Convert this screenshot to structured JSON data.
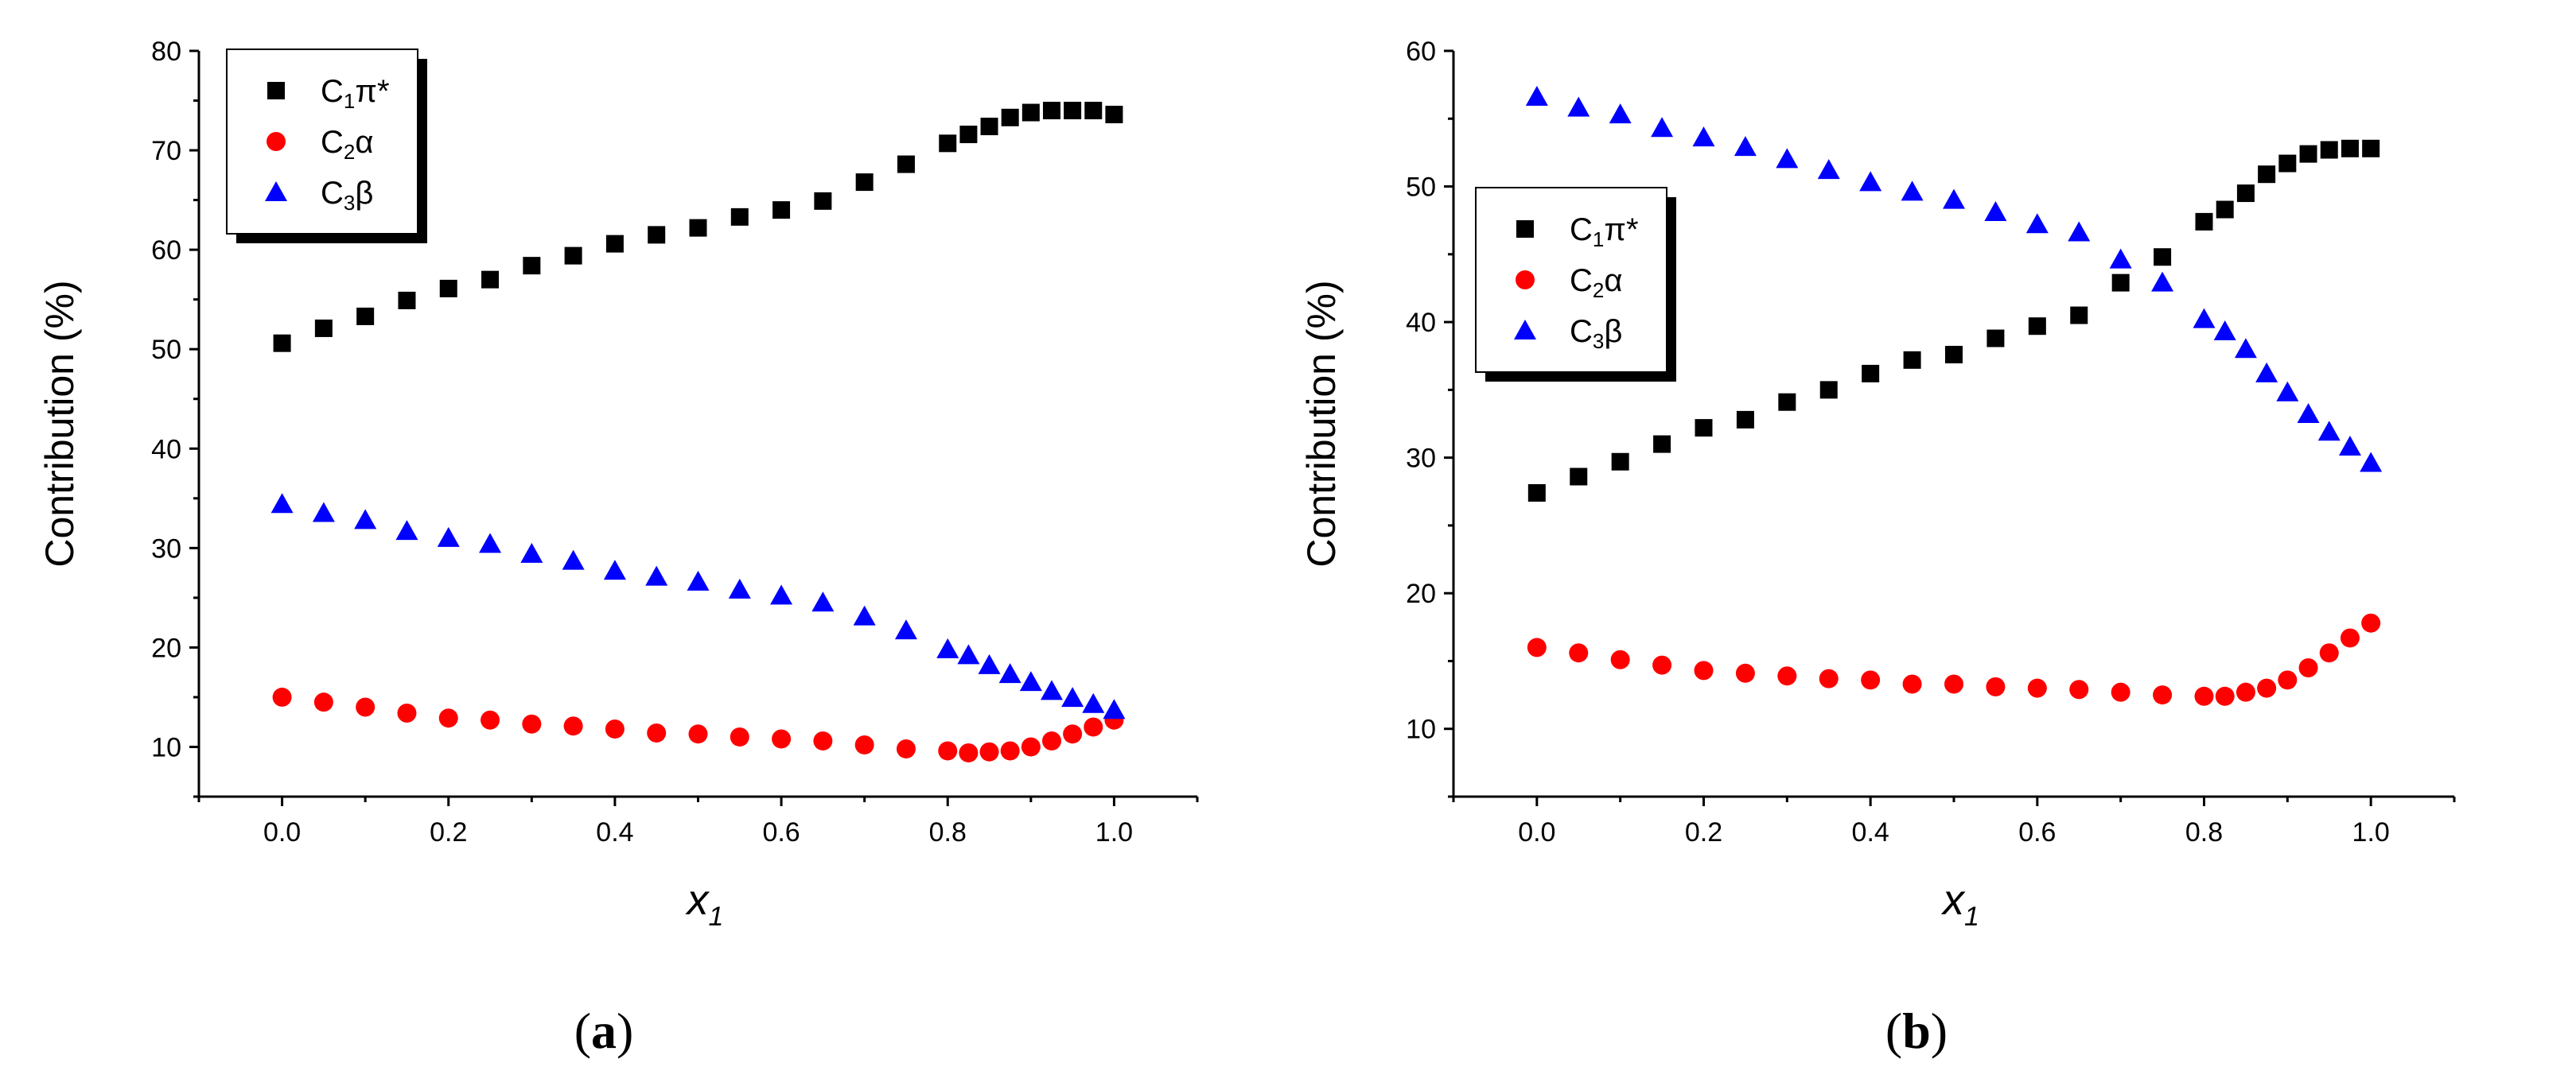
{
  "legend_labels": {
    "s1": {
      "base": "C",
      "sub": "1",
      "rest": "π*"
    },
    "s2": {
      "base": "C",
      "sub": "2",
      "rest": "α"
    },
    "s3": {
      "base": "C",
      "sub": "3",
      "rest": "β"
    }
  },
  "panel_labels": [
    {
      "open": "(",
      "letter": "a",
      "close": ")"
    },
    {
      "open": "(",
      "letter": "b",
      "close": ")"
    }
  ],
  "colors": {
    "s1": "#000000",
    "s2": "#ff0000",
    "s3": "#0000ff"
  },
  "chart_data": [
    {
      "type": "scatter",
      "xlabel": {
        "main": "x",
        "sub": "1"
      },
      "ylabel": "Contribution (%)",
      "xlim": [
        -0.1,
        1.1
      ],
      "ylim": [
        5,
        80
      ],
      "xticks": [
        "0.0",
        "0.2",
        "0.4",
        "0.6",
        "0.8",
        "1.0"
      ],
      "yticks": [
        "10",
        "20",
        "30",
        "40",
        "50",
        "60",
        "70",
        "80"
      ],
      "legend_position": "top-left",
      "series": [
        {
          "name": "C1π*",
          "marker": "square",
          "color": "#000000",
          "x": [
            0,
            0.05,
            0.1,
            0.15,
            0.2,
            0.25,
            0.3,
            0.35,
            0.4,
            0.45,
            0.5,
            0.55,
            0.6,
            0.65,
            0.7,
            0.75,
            0.8,
            0.825,
            0.85,
            0.875,
            0.9,
            0.925,
            0.95,
            0.975,
            1.0
          ],
          "y": [
            50.6,
            52.1,
            53.3,
            54.9,
            56.1,
            57.0,
            58.4,
            59.4,
            60.6,
            61.5,
            62.2,
            63.3,
            64.0,
            64.9,
            66.8,
            68.6,
            70.7,
            71.6,
            72.4,
            73.3,
            73.8,
            74.0,
            74.0,
            74.0,
            73.6
          ]
        },
        {
          "name": "C2α",
          "marker": "circle",
          "color": "#ff0000",
          "x": [
            0,
            0.05,
            0.1,
            0.15,
            0.2,
            0.25,
            0.3,
            0.35,
            0.4,
            0.45,
            0.5,
            0.55,
            0.6,
            0.65,
            0.7,
            0.75,
            0.8,
            0.825,
            0.85,
            0.875,
            0.9,
            0.925,
            0.95,
            0.975,
            1.0
          ],
          "y": [
            15.0,
            14.5,
            14.0,
            13.4,
            12.9,
            12.7,
            12.3,
            12.1,
            11.8,
            11.4,
            11.3,
            11.0,
            10.8,
            10.6,
            10.2,
            9.8,
            9.6,
            9.4,
            9.5,
            9.6,
            10.0,
            10.6,
            11.3,
            12.0,
            12.7
          ]
        },
        {
          "name": "C3β",
          "marker": "triangle",
          "color": "#0000ff",
          "x": [
            0,
            0.05,
            0.1,
            0.15,
            0.2,
            0.25,
            0.3,
            0.35,
            0.4,
            0.45,
            0.5,
            0.55,
            0.6,
            0.65,
            0.7,
            0.75,
            0.8,
            0.825,
            0.85,
            0.875,
            0.9,
            0.925,
            0.95,
            0.975,
            1.0
          ],
          "y": [
            34.4,
            33.5,
            32.8,
            31.7,
            31.0,
            30.4,
            29.4,
            28.7,
            27.7,
            27.1,
            26.6,
            25.8,
            25.2,
            24.5,
            23.1,
            21.7,
            19.8,
            19.2,
            18.2,
            17.3,
            16.5,
            15.6,
            14.9,
            14.3,
            13.7
          ]
        }
      ]
    },
    {
      "type": "scatter",
      "xlabel": {
        "main": "x",
        "sub": "1"
      },
      "ylabel": "Contribution (%)",
      "xlim": [
        -0.1,
        1.1
      ],
      "ylim": [
        5,
        60
      ],
      "xticks": [
        "0.0",
        "0.2",
        "0.4",
        "0.6",
        "0.8",
        "1.0"
      ],
      "yticks": [
        "10",
        "20",
        "30",
        "40",
        "50",
        "60"
      ],
      "legend_position": "top-left",
      "series": [
        {
          "name": "C1π*",
          "marker": "square",
          "color": "#000000",
          "x": [
            0,
            0.05,
            0.1,
            0.15,
            0.2,
            0.25,
            0.3,
            0.35,
            0.4,
            0.45,
            0.5,
            0.55,
            0.6,
            0.65,
            0.7,
            0.75,
            0.8,
            0.825,
            0.85,
            0.875,
            0.9,
            0.925,
            0.95,
            0.975,
            1.0
          ],
          "y": [
            27.4,
            28.6,
            29.7,
            31.0,
            32.2,
            32.8,
            34.1,
            35.0,
            36.2,
            37.2,
            37.6,
            38.8,
            39.7,
            40.5,
            42.9,
            44.8,
            47.4,
            48.3,
            49.5,
            50.9,
            51.7,
            52.4,
            52.7,
            52.8,
            52.8
          ]
        },
        {
          "name": "C2α",
          "marker": "circle",
          "color": "#ff0000",
          "x": [
            0,
            0.05,
            0.1,
            0.15,
            0.2,
            0.25,
            0.3,
            0.35,
            0.4,
            0.45,
            0.5,
            0.55,
            0.6,
            0.65,
            0.7,
            0.75,
            0.8,
            0.825,
            0.85,
            0.875,
            0.9,
            0.925,
            0.95,
            0.975,
            1.0
          ],
          "y": [
            16.0,
            15.6,
            15.1,
            14.7,
            14.3,
            14.1,
            13.9,
            13.7,
            13.6,
            13.3,
            13.3,
            13.1,
            13.0,
            12.9,
            12.7,
            12.5,
            12.4,
            12.4,
            12.7,
            13.0,
            13.6,
            14.5,
            15.6,
            16.7,
            17.8
          ]
        },
        {
          "name": "C3β",
          "marker": "triangle",
          "color": "#0000ff",
          "x": [
            0,
            0.05,
            0.1,
            0.15,
            0.2,
            0.25,
            0.3,
            0.35,
            0.4,
            0.45,
            0.5,
            0.55,
            0.6,
            0.65,
            0.7,
            0.75,
            0.8,
            0.825,
            0.85,
            0.875,
            0.9,
            0.925,
            0.95,
            0.975,
            1.0
          ],
          "y": [
            56.6,
            55.8,
            55.3,
            54.3,
            53.6,
            52.9,
            52.0,
            51.2,
            50.3,
            49.6,
            49.0,
            48.1,
            47.2,
            46.6,
            44.6,
            42.9,
            40.2,
            39.3,
            38.0,
            36.2,
            34.8,
            33.2,
            31.9,
            30.8,
            29.6
          ]
        }
      ]
    }
  ]
}
